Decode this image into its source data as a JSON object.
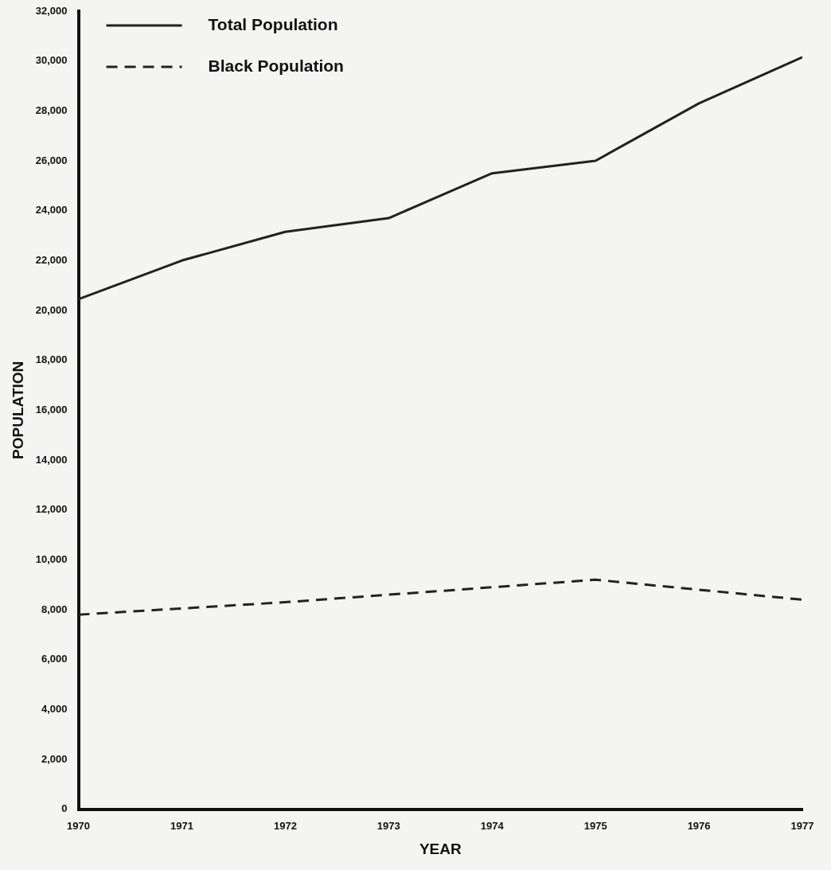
{
  "chart_data": {
    "type": "line",
    "xlabel": "YEAR",
    "ylabel": "POPULATION",
    "x": [
      1970,
      1971,
      1972,
      1973,
      1974,
      1975,
      1976,
      1977
    ],
    "series": [
      {
        "name": "Total Population",
        "color": "#222222",
        "line_style": "solid",
        "values": [
          20450,
          22000,
          23150,
          23700,
          25500,
          26000,
          28300,
          30150
        ]
      },
      {
        "name": "Black Population",
        "color": "#222222",
        "line_style": "dashed",
        "values": [
          7800,
          8050,
          8300,
          8600,
          8900,
          9200,
          8800,
          8400
        ]
      }
    ],
    "xlim": [
      1970,
      1977
    ],
    "xticks": [
      1970,
      1971,
      1972,
      1973,
      1974,
      1975,
      1976,
      1977
    ],
    "ylim": [
      0,
      32000
    ],
    "yticks": [
      {
        "value": 0,
        "label": "0"
      },
      {
        "value": 2000,
        "label": "2,000"
      },
      {
        "value": 4000,
        "label": "4,000"
      },
      {
        "value": 6000,
        "label": "6,000"
      },
      {
        "value": 8000,
        "label": "8,000"
      },
      {
        "value": 10000,
        "label": "10,000"
      },
      {
        "value": 12000,
        "label": "12,000"
      },
      {
        "value": 14000,
        "label": "14,000"
      },
      {
        "value": 16000,
        "label": "16,000"
      },
      {
        "value": 18000,
        "label": "18,000"
      },
      {
        "value": 20000,
        "label": "20,000"
      },
      {
        "value": 22000,
        "label": "22,000"
      },
      {
        "value": 24000,
        "label": "24,000"
      },
      {
        "value": 26000,
        "label": "26,000"
      },
      {
        "value": 28000,
        "label": "28,000"
      },
      {
        "value": 30000,
        "label": "30,000"
      },
      {
        "value": 32000,
        "label": "32,000"
      }
    ],
    "grid": false,
    "legend": "top left",
    "marker": "none"
  }
}
